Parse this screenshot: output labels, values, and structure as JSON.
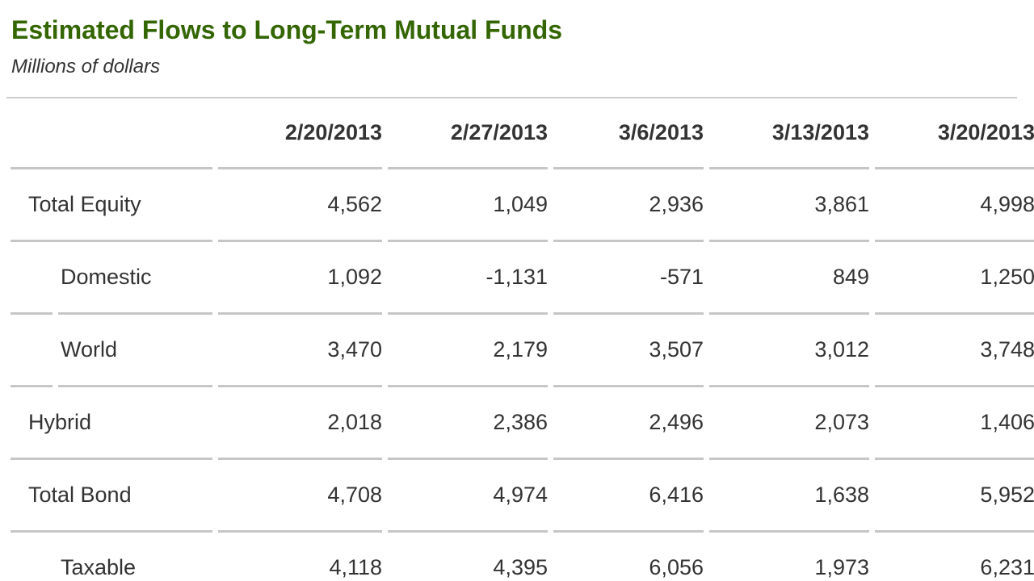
{
  "header": {
    "title": "Estimated Flows to Long-Term Mutual Funds",
    "subtitle": "Millions of dollars"
  },
  "chart_data": {
    "type": "table",
    "title": "Estimated Flows to Long-Term Mutual Funds",
    "units_note": "Millions of dollars",
    "columns": [
      "2/20/2013",
      "2/27/2013",
      "3/6/2013",
      "3/13/2013",
      "3/20/2013"
    ],
    "rows": [
      {
        "label": "Total Equity",
        "indent": false,
        "values": [
          "4,562",
          "1,049",
          "2,936",
          "3,861",
          "4,998"
        ]
      },
      {
        "label": "Domestic",
        "indent": true,
        "values": [
          "1,092",
          "-1,131",
          "-571",
          "849",
          "1,250"
        ]
      },
      {
        "label": "World",
        "indent": true,
        "values": [
          "3,470",
          "2,179",
          "3,507",
          "3,012",
          "3,748"
        ]
      },
      {
        "label": "Hybrid",
        "indent": false,
        "values": [
          "2,018",
          "2,386",
          "2,496",
          "2,073",
          "1,406"
        ]
      },
      {
        "label": "Total Bond",
        "indent": false,
        "values": [
          "4,708",
          "4,974",
          "6,416",
          "1,638",
          "5,952"
        ]
      },
      {
        "label": "Taxable",
        "indent": true,
        "values": [
          "4,118",
          "4,395",
          "6,056",
          "1,973",
          "6,231"
        ]
      }
    ]
  },
  "colors": {
    "title_green": "#336600",
    "text": "#333333",
    "divider_gray": "#c6c6c6",
    "background": "#ffffff"
  }
}
